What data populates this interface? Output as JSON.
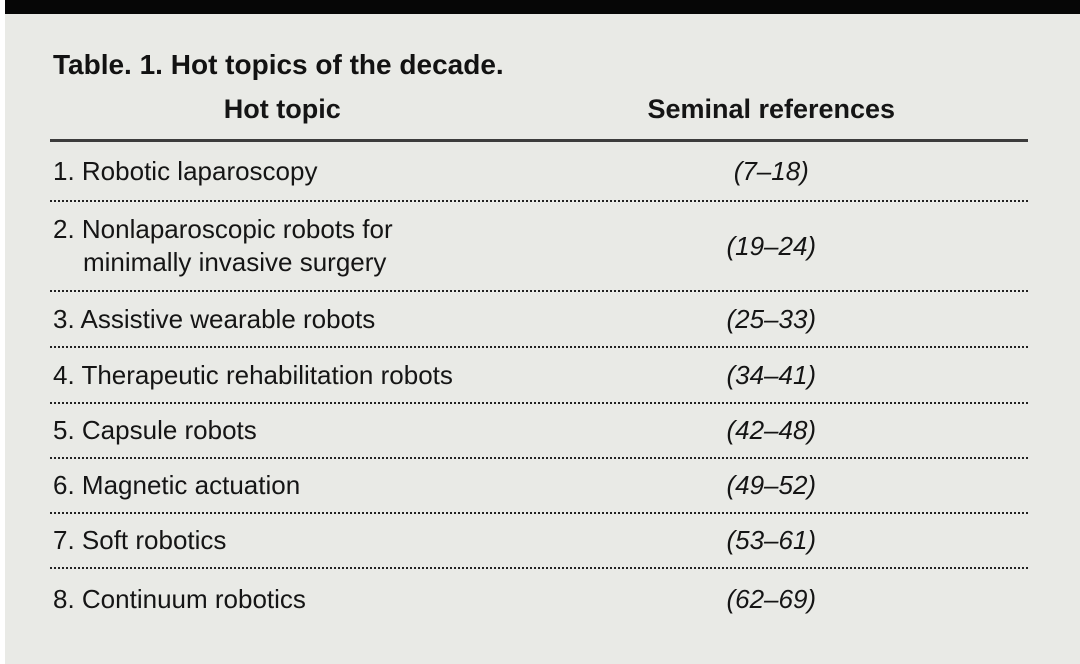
{
  "panel": {
    "background_color": "#e9eae6",
    "top_bar_color": "#060606",
    "text_color": "#151515"
  },
  "table": {
    "title": "Table. 1. Hot topics of the decade.",
    "columns": [
      {
        "label": "Hot topic"
      },
      {
        "label": "Seminal references"
      }
    ],
    "rows": [
      {
        "topic": "1. Robotic laparoscopy",
        "references": "(7–18)"
      },
      {
        "topic": "2. Nonlaparoscopic robots for\nminimally invasive surgery",
        "references": "(19–24)"
      },
      {
        "topic": "3. Assistive wearable robots",
        "references": "(25–33)"
      },
      {
        "topic": "4. Therapeutic rehabilitation robots",
        "references": "(34–41)"
      },
      {
        "topic": "5. Capsule robots",
        "references": "(42–48)"
      },
      {
        "topic": "6. Magnetic actuation",
        "references": "(49–52)"
      },
      {
        "topic": "7. Soft robotics",
        "references": "(53–61)"
      },
      {
        "topic": "8. Continuum robotics",
        "references": "(62–69)"
      }
    ]
  }
}
